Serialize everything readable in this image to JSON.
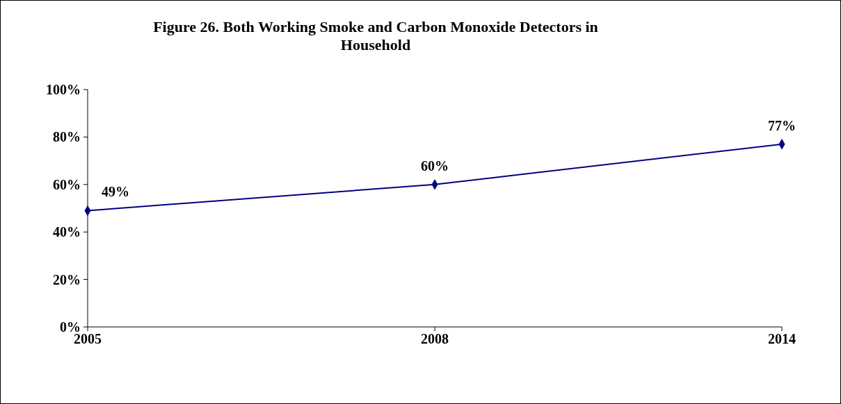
{
  "chart_data": {
    "type": "line",
    "title": "Figure 26. Both Working Smoke and Carbon Monoxide Detectors in Household",
    "categories": [
      "2005",
      "2008",
      "2014"
    ],
    "series": [
      {
        "color": "#000080",
        "values": [
          49,
          60,
          77
        ],
        "value_labels": [
          "49%",
          "60%",
          "77%"
        ]
      }
    ],
    "ylim": [
      0,
      100
    ],
    "yticks": [
      {
        "value": 0,
        "label": "0%"
      },
      {
        "value": 20,
        "label": "20%"
      },
      {
        "value": 40,
        "label": "40%"
      },
      {
        "value": 60,
        "label": "60%"
      },
      {
        "value": 80,
        "label": "80%"
      },
      {
        "value": 100,
        "label": "100%"
      }
    ],
    "grid": false,
    "marker": "diamond",
    "line_style": "solid"
  }
}
